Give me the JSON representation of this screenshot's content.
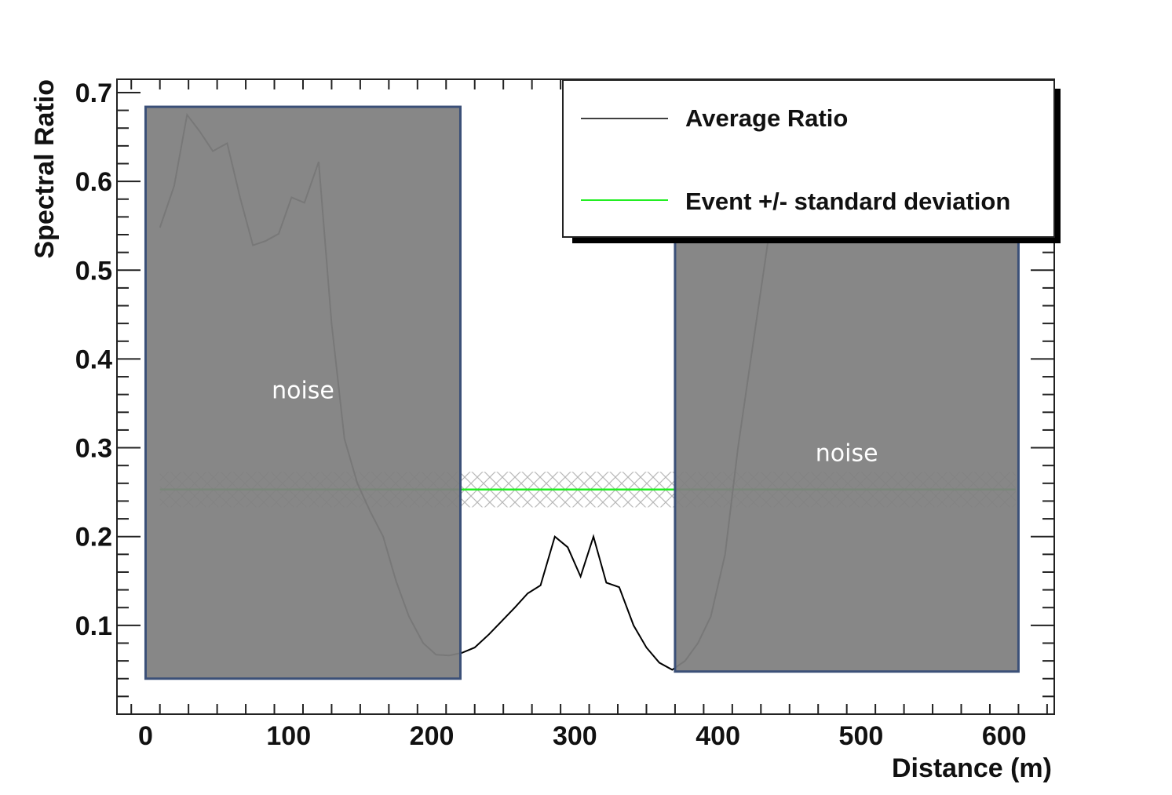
{
  "chart_data": {
    "type": "line",
    "xlabel": "Distance (m)",
    "ylabel": "Spectral Ratio",
    "xlim": [
      -20,
      635
    ],
    "ylim": [
      0.0,
      0.715
    ],
    "xticks": [
      0,
      100,
      200,
      300,
      400,
      500,
      600
    ],
    "xtick_labels": [
      "0",
      "100",
      "200",
      "300",
      "400",
      "500",
      "600"
    ],
    "yticks": [
      0.1,
      0.2,
      0.3,
      0.4,
      0.5,
      0.6,
      0.7
    ],
    "ytick_labels": [
      "0.1",
      "0.2",
      "0.3",
      "0.4",
      "0.5",
      "0.6",
      "0.7"
    ],
    "legend": {
      "position": "top-right",
      "entries": [
        {
          "label": "Average Ratio",
          "color": "#000000"
        },
        {
          "label": "Event +/- standard deviation",
          "color": "#22ee22"
        }
      ]
    },
    "series": [
      {
        "name": "Average Ratio",
        "color": "#000000",
        "x": [
          10,
          20,
          29,
          38,
          47,
          57,
          66,
          75,
          84,
          93,
          102,
          111,
          121,
          130,
          139,
          148,
          157,
          166,
          175,
          184,
          194,
          203,
          212,
          221,
          230,
          240,
          249,
          258,
          267,
          276,
          286,
          295,
          304,
          313,
          322,
          331,
          341,
          350,
          359,
          368,
          377,
          386,
          395,
          405,
          414,
          423,
          432,
          441
        ],
        "y": [
          0.548,
          0.595,
          0.675,
          0.656,
          0.634,
          0.643,
          0.582,
          0.528,
          0.533,
          0.541,
          0.582,
          0.576,
          0.622,
          0.44,
          0.31,
          0.26,
          0.228,
          0.2,
          0.15,
          0.11,
          0.08,
          0.067,
          0.066,
          0.069,
          0.075,
          0.09,
          0.105,
          0.12,
          0.136,
          0.145,
          0.2,
          0.188,
          0.155,
          0.2,
          0.148,
          0.143,
          0.1,
          0.075,
          0.058,
          0.05,
          0.06,
          0.08,
          0.11,
          0.18,
          0.3,
          0.4,
          0.5,
          0.6
        ]
      },
      {
        "name": "Event +/- standard deviation",
        "color": "#22ee22",
        "x": [
          10,
          608
        ],
        "y": [
          0.253,
          0.253
        ],
        "band": [
          0.233,
          0.273
        ]
      }
    ],
    "annotations": [
      {
        "text": "noise",
        "x_range": [
          0,
          220
        ],
        "y_range": [
          0.04,
          0.684
        ]
      },
      {
        "text": "noise",
        "x_range": [
          370,
          610
        ],
        "y_range": [
          0.048,
          0.532
        ]
      }
    ]
  }
}
